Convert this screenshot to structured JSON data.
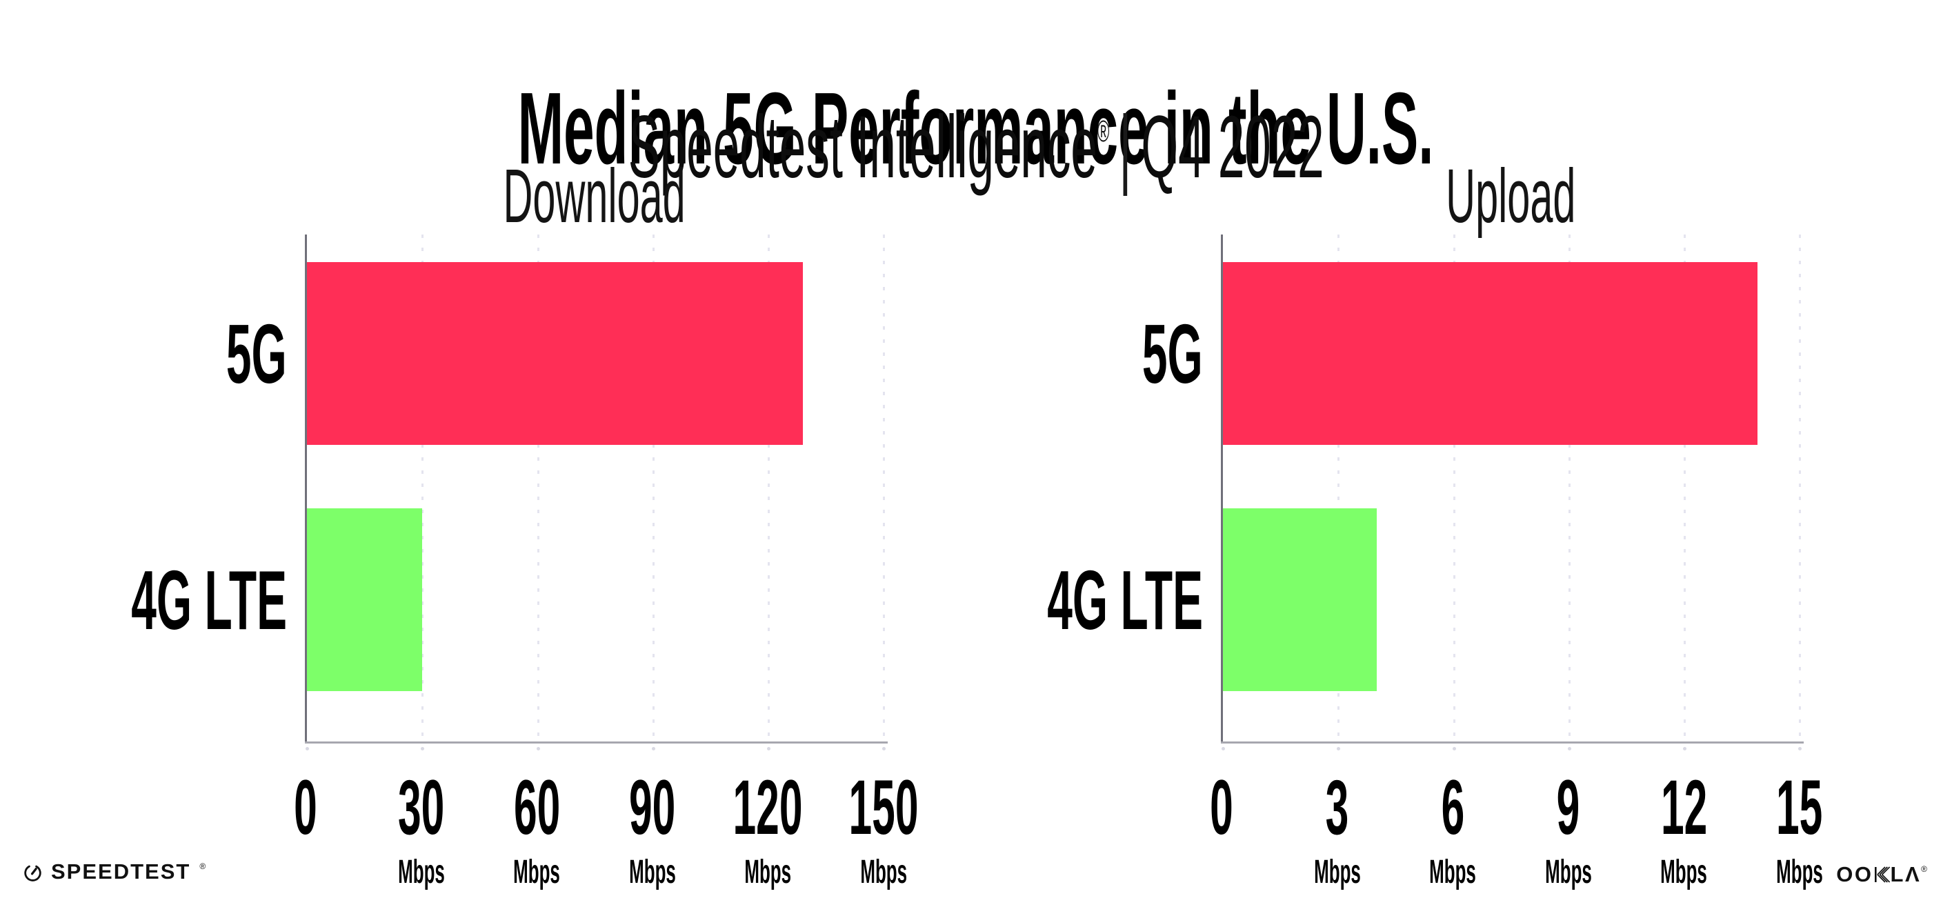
{
  "header": {
    "title": "Median 5G Performance in the U.S.",
    "subtitle_brand": "Speedtest Intelligence",
    "subtitle_reg": "®",
    "subtitle_separator": "|",
    "subtitle_period": "Q4 2022"
  },
  "chart_data": [
    {
      "type": "bar",
      "orientation": "horizontal",
      "title": "Download",
      "categories": [
        "5G",
        "4G LTE"
      ],
      "values": [
        129,
        30
      ],
      "unit": "Mbps",
      "xlim": [
        0,
        150
      ],
      "xticks": [
        0,
        30,
        60,
        90,
        120,
        150
      ],
      "bar_colors": [
        "#ff2e56",
        "#7dff69"
      ],
      "grid": "dotted-vertical",
      "legend": "none"
    },
    {
      "type": "bar",
      "orientation": "horizontal",
      "title": "Upload",
      "categories": [
        "5G",
        "4G LTE"
      ],
      "values": [
        13.9,
        4
      ],
      "unit": "Mbps",
      "xlim": [
        0,
        15
      ],
      "xticks": [
        0,
        3,
        6,
        9,
        12,
        15
      ],
      "bar_colors": [
        "#ff2e56",
        "#7dff69"
      ],
      "grid": "dotted-vertical",
      "legend": "none"
    }
  ],
  "footer": {
    "speedtest_label": "SPEEDTEST",
    "speedtest_reg": "®",
    "ookla_prefix": "OO",
    "ookla_k": "K",
    "ookla_suffix": "LΛ",
    "ookla_reg": "®"
  },
  "colors": {
    "bar_5g": "#ff2e56",
    "bar_4g": "#7dff69",
    "y_axis": "#70707a",
    "x_axis": "#a7a7af",
    "gridline": "#e4e4ef",
    "text": "#000000",
    "background": "#ffffff"
  }
}
